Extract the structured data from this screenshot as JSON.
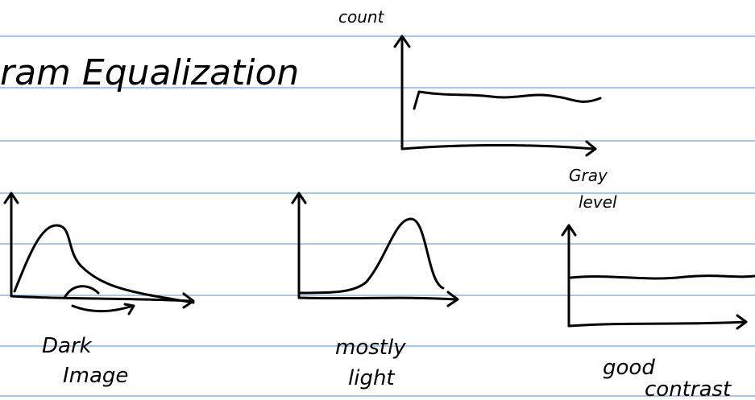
{
  "title": "ram Equalization",
  "target_plot": {
    "y_label": "count",
    "x_label_lines": [
      "Gray",
      "level"
    ]
  },
  "plots": [
    {
      "caption_lines": [
        "Dark",
        "Image"
      ]
    },
    {
      "caption_lines": [
        "mostly",
        "light"
      ]
    },
    {
      "caption_lines": [
        "good",
        "contrast"
      ]
    }
  ]
}
